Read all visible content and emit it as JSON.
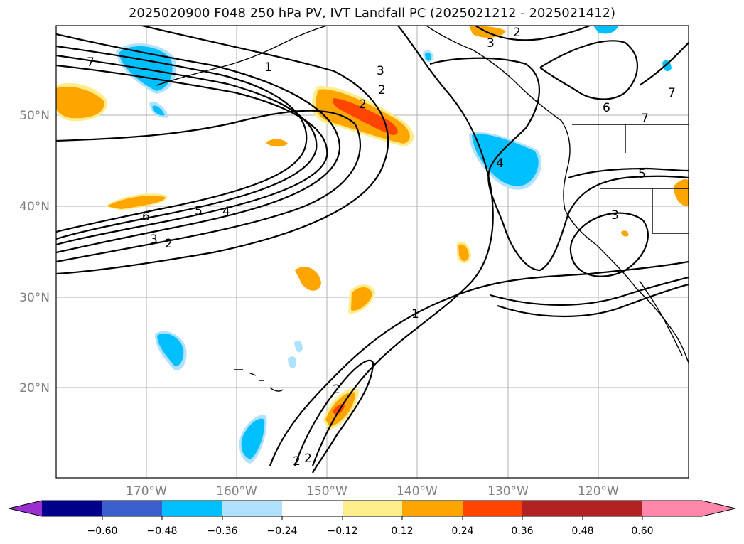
{
  "title": "2025020900 F048 250 hPa PV, IVT Landfall PC (2025021212 - 2025021412)",
  "lat_labels": [
    "50°N",
    "40°N",
    "30°N",
    "20°N"
  ],
  "lon_labels": [
    "170°W",
    "160°W",
    "150°W",
    "140°W",
    "130°W",
    "120°W"
  ],
  "contour_labels": [
    "7",
    "1",
    "3",
    "2",
    "2",
    "3",
    "2",
    "6",
    "7",
    "5",
    "4",
    "3",
    "6",
    "5",
    "4",
    "3",
    "2",
    "1",
    "2",
    "2",
    "2",
    "7"
  ],
  "colorbar": {
    "colors": [
      "#9b30d0",
      "#00008b",
      "#3a5fcd",
      "#00bfff",
      "#b0e2ff",
      "#ffffff",
      "#ffec8b",
      "#ffa500",
      "#ff4500",
      "#b22222",
      "#ff88aa"
    ],
    "tick_labels": [
      "−0.60",
      "−0.48",
      "−0.36",
      "−0.24",
      "−0.12",
      "0.12",
      "0.24",
      "0.36",
      "0.48",
      "0.60"
    ]
  }
}
